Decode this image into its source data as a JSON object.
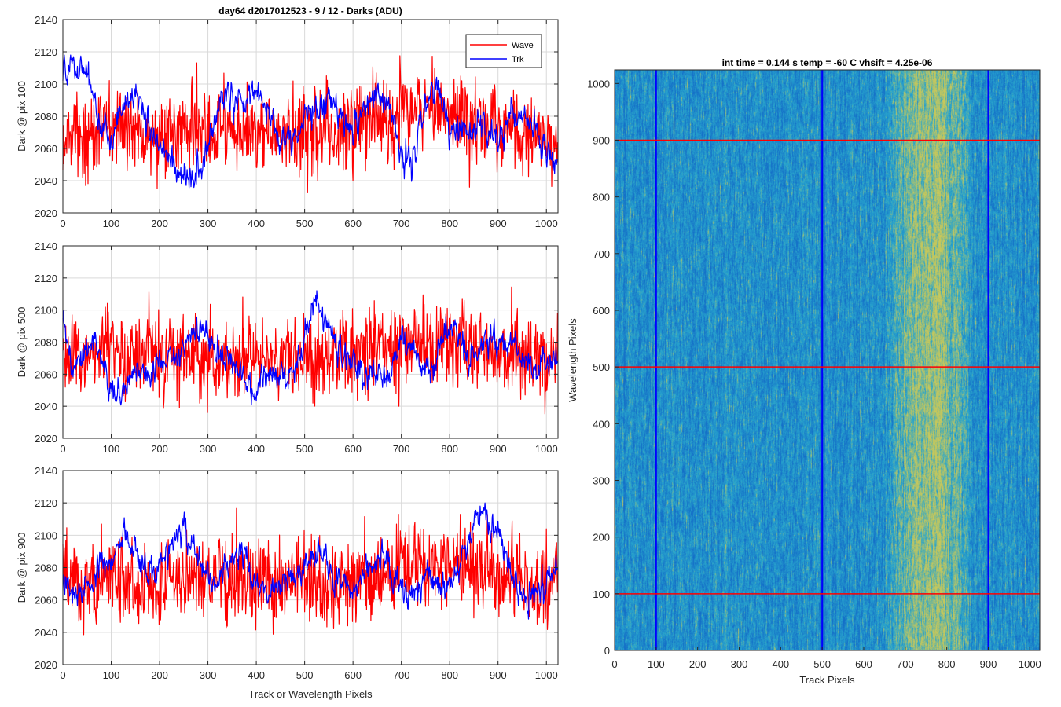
{
  "figure": {
    "title": "day64 d2017012523 - 9 / 12 - Darks (ADU)",
    "colors": {
      "wave": "#ff0000",
      "trk": "#0000ff",
      "axes": "#262626",
      "grid": "#d9d9d9"
    }
  },
  "legend": {
    "entries": [
      "Wave",
      "Trk"
    ]
  },
  "chart_data": [
    {
      "type": "line",
      "id": "dark-pix-100",
      "title": "day64 d2017012523 - 9 / 12 - Darks (ADU)",
      "xlabel": "",
      "ylabel": "Dark @ pix 100",
      "xlim": [
        0,
        1024
      ],
      "ylim": [
        2020,
        2140
      ],
      "xticks": [
        0,
        100,
        200,
        300,
        400,
        500,
        600,
        700,
        800,
        900,
        1000
      ],
      "yticks": [
        2020,
        2040,
        2060,
        2080,
        2100,
        2120,
        2140
      ],
      "grid": true,
      "legend_position": "top-right",
      "series": [
        {
          "name": "Wave",
          "color": "#ff0000",
          "n_points": 1024,
          "approx_mean": 2070,
          "approx_range": [
            2030,
            2130
          ],
          "profile": [
            [
              0,
              2068
            ],
            [
              50,
              2068
            ],
            [
              100,
              2072
            ],
            [
              150,
              2072
            ],
            [
              200,
              2068
            ],
            [
              250,
              2070
            ],
            [
              300,
              2070
            ],
            [
              350,
              2072
            ],
            [
              400,
              2070
            ],
            [
              450,
              2068
            ],
            [
              500,
              2070
            ],
            [
              550,
              2072
            ],
            [
              600,
              2074
            ],
            [
              650,
              2080
            ],
            [
              700,
              2082
            ],
            [
              750,
              2085
            ],
            [
              800,
              2082
            ],
            [
              850,
              2078
            ],
            [
              900,
              2074
            ],
            [
              950,
              2070
            ],
            [
              1024,
              2065
            ]
          ]
        },
        {
          "name": "Trk",
          "color": "#0000ff",
          "n_points": 1024,
          "approx_range": [
            2035,
            2118
          ],
          "profile": [
            [
              0,
              2108
            ],
            [
              40,
              2112
            ],
            [
              60,
              2095
            ],
            [
              80,
              2070
            ],
            [
              100,
              2070
            ],
            [
              140,
              2090
            ],
            [
              160,
              2095
            ],
            [
              180,
              2070
            ],
            [
              200,
              2060
            ],
            [
              230,
              2048
            ],
            [
              260,
              2042
            ],
            [
              280,
              2045
            ],
            [
              300,
              2060
            ],
            [
              330,
              2095
            ],
            [
              360,
              2085
            ],
            [
              380,
              2095
            ],
            [
              400,
              2100
            ],
            [
              430,
              2075
            ],
            [
              460,
              2062
            ],
            [
              490,
              2070
            ],
            [
              520,
              2085
            ],
            [
              550,
              2092
            ],
            [
              580,
              2078
            ],
            [
              600,
              2070
            ],
            [
              630,
              2085
            ],
            [
              650,
              2098
            ],
            [
              680,
              2082
            ],
            [
              700,
              2055
            ],
            [
              720,
              2048
            ],
            [
              750,
              2088
            ],
            [
              770,
              2098
            ],
            [
              800,
              2075
            ],
            [
              840,
              2068
            ],
            [
              870,
              2075
            ],
            [
              900,
              2065
            ],
            [
              930,
              2085
            ],
            [
              960,
              2080
            ],
            [
              990,
              2065
            ],
            [
              1024,
              2048
            ]
          ]
        }
      ]
    },
    {
      "type": "line",
      "id": "dark-pix-500",
      "xlabel": "",
      "ylabel": "Dark @ pix 500",
      "xlim": [
        0,
        1024
      ],
      "ylim": [
        2020,
        2140
      ],
      "xticks": [
        0,
        100,
        200,
        300,
        400,
        500,
        600,
        700,
        800,
        900,
        1000
      ],
      "yticks": [
        2020,
        2040,
        2060,
        2080,
        2100,
        2120,
        2140
      ],
      "grid": true,
      "series": [
        {
          "name": "Wave",
          "color": "#ff0000",
          "n_points": 1024,
          "approx_mean": 2072,
          "approx_range": [
            2030,
            2125
          ],
          "profile": [
            [
              0,
              2068
            ],
            [
              100,
              2075
            ],
            [
              200,
              2072
            ],
            [
              300,
              2070
            ],
            [
              400,
              2070
            ],
            [
              500,
              2068
            ],
            [
              600,
              2075
            ],
            [
              700,
              2080
            ],
            [
              800,
              2078
            ],
            [
              900,
              2075
            ],
            [
              1024,
              2068
            ]
          ]
        },
        {
          "name": "Trk",
          "color": "#0000ff",
          "n_points": 1024,
          "approx_range": [
            2033,
            2113
          ],
          "profile": [
            [
              0,
              2092
            ],
            [
              20,
              2062
            ],
            [
              50,
              2082
            ],
            [
              80,
              2068
            ],
            [
              110,
              2045
            ],
            [
              150,
              2062
            ],
            [
              180,
              2058
            ],
            [
              210,
              2068
            ],
            [
              240,
              2072
            ],
            [
              270,
              2090
            ],
            [
              300,
              2082
            ],
            [
              340,
              2070
            ],
            [
              370,
              2058
            ],
            [
              400,
              2050
            ],
            [
              430,
              2060
            ],
            [
              460,
              2055
            ],
            [
              490,
              2070
            ],
            [
              520,
              2105
            ],
            [
              540,
              2095
            ],
            [
              570,
              2078
            ],
            [
              600,
              2068
            ],
            [
              630,
              2058
            ],
            [
              660,
              2055
            ],
            [
              680,
              2060
            ],
            [
              700,
              2085
            ],
            [
              730,
              2072
            ],
            [
              760,
              2056
            ],
            [
              790,
              2085
            ],
            [
              810,
              2090
            ],
            [
              840,
              2070
            ],
            [
              870,
              2082
            ],
            [
              900,
              2080
            ],
            [
              940,
              2078
            ],
            [
              970,
              2060
            ],
            [
              1000,
              2068
            ],
            [
              1024,
              2075
            ]
          ]
        }
      ]
    },
    {
      "type": "line",
      "id": "dark-pix-900",
      "xlabel": "Track or Wavelength Pixels",
      "ylabel": "Dark @ pix 900",
      "xlim": [
        0,
        1024
      ],
      "ylim": [
        2020,
        2140
      ],
      "xticks": [
        0,
        100,
        200,
        300,
        400,
        500,
        600,
        700,
        800,
        900,
        1000
      ],
      "yticks": [
        2020,
        2040,
        2060,
        2080,
        2100,
        2120,
        2140
      ],
      "grid": true,
      "series": [
        {
          "name": "Wave",
          "color": "#ff0000",
          "n_points": 1024,
          "approx_mean": 2072,
          "approx_range": [
            2032,
            2135
          ],
          "profile": [
            [
              0,
              2070
            ],
            [
              100,
              2072
            ],
            [
              200,
              2070
            ],
            [
              300,
              2072
            ],
            [
              400,
              2070
            ],
            [
              500,
              2068
            ],
            [
              600,
              2072
            ],
            [
              700,
              2078
            ],
            [
              800,
              2080
            ],
            [
              900,
              2075
            ],
            [
              1024,
              2068
            ]
          ]
        },
        {
          "name": "Trk",
          "color": "#0000ff",
          "n_points": 1024,
          "approx_range": [
            2043,
            2123
          ],
          "profile": [
            [
              0,
              2070
            ],
            [
              30,
              2060
            ],
            [
              60,
              2070
            ],
            [
              90,
              2082
            ],
            [
              130,
              2100
            ],
            [
              160,
              2085
            ],
            [
              190,
              2075
            ],
            [
              220,
              2092
            ],
            [
              250,
              2105
            ],
            [
              280,
              2085
            ],
            [
              310,
              2070
            ],
            [
              340,
              2082
            ],
            [
              370,
              2088
            ],
            [
              400,
              2068
            ],
            [
              430,
              2062
            ],
            [
              460,
              2070
            ],
            [
              500,
              2080
            ],
            [
              530,
              2090
            ],
            [
              560,
              2070
            ],
            [
              600,
              2068
            ],
            [
              640,
              2082
            ],
            [
              660,
              2085
            ],
            [
              690,
              2070
            ],
            [
              720,
              2062
            ],
            [
              760,
              2075
            ],
            [
              780,
              2068
            ],
            [
              800,
              2070
            ],
            [
              830,
              2090
            ],
            [
              870,
              2115
            ],
            [
              900,
              2100
            ],
            [
              930,
              2075
            ],
            [
              960,
              2058
            ],
            [
              990,
              2068
            ],
            [
              1024,
              2082
            ]
          ]
        }
      ]
    },
    {
      "type": "heatmap",
      "id": "dark-image",
      "title": "int time = 0.144 s   temp = -60 C   vhsift = 4.25e-06",
      "xlabel": "Track Pixels",
      "ylabel": "Wavelength Pixels",
      "xlim": [
        0,
        1024
      ],
      "ylim": [
        0,
        1024
      ],
      "xticks": [
        0,
        100,
        200,
        300,
        400,
        500,
        600,
        700,
        800,
        900,
        1000
      ],
      "yticks": [
        0,
        100,
        200,
        300,
        400,
        500,
        600,
        700,
        800,
        900,
        1000
      ],
      "colormap": "parula",
      "base_color": "#2f9fc8",
      "bright_band_track_range": [
        640,
        860
      ],
      "bright_band_peak": 760,
      "dark_column_tracks": [
        500
      ],
      "vertical_marker_lines": {
        "color": "#0000ff",
        "x": [
          100,
          500,
          900
        ]
      },
      "horizontal_marker_lines": {
        "color": "#ff0000",
        "y": [
          100,
          500,
          900
        ]
      }
    }
  ]
}
